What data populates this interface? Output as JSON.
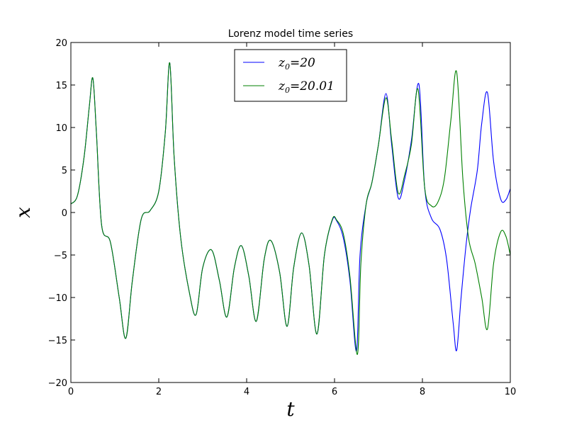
{
  "chart_data": {
    "type": "line",
    "title": "Lorenz model time series",
    "xlabel": "t",
    "ylabel": "x",
    "xlim": [
      0,
      10
    ],
    "ylim": [
      -20,
      20
    ],
    "xticks": [
      0,
      2,
      4,
      6,
      8,
      10
    ],
    "yticks": [
      -20,
      -15,
      -10,
      -5,
      0,
      5,
      10,
      15,
      20
    ],
    "xtick_labels": [
      "0",
      "2",
      "4",
      "6",
      "8",
      "10"
    ],
    "ytick_labels": [
      "−20",
      "−15",
      "−10",
      "−5",
      "0",
      "5",
      "10",
      "15",
      "20"
    ],
    "grid": false,
    "legend_position": "top-center",
    "series": [
      {
        "name": "z₀ = 20",
        "legend_var": "z",
        "legend_sub": "0",
        "legend_val": "=20",
        "color": "#0000ff",
        "x": [
          0,
          0.15,
          0.3,
          0.42,
          0.5,
          0.58,
          0.7,
          0.9,
          1.1,
          1.25,
          1.4,
          1.6,
          1.8,
          2.0,
          2.15,
          2.25,
          2.35,
          2.5,
          2.7,
          2.85,
          3.0,
          3.2,
          3.38,
          3.55,
          3.72,
          3.88,
          4.05,
          4.22,
          4.4,
          4.55,
          4.75,
          4.92,
          5.07,
          5.25,
          5.42,
          5.6,
          5.77,
          5.95,
          6.05,
          6.2,
          6.35,
          6.5,
          6.58,
          6.72,
          6.85,
          7.0,
          7.17,
          7.3,
          7.45,
          7.6,
          7.75,
          7.92,
          8.05,
          8.2,
          8.4,
          8.55,
          8.7,
          8.78,
          8.88,
          9.0,
          9.1,
          9.25,
          9.35,
          9.48,
          9.62,
          9.78,
          9.9,
          10.0
        ],
        "y": [
          1.0,
          2.0,
          6.5,
          12.5,
          15.8,
          9.5,
          -1.5,
          -3.5,
          -10,
          -14.8,
          -8,
          -0.8,
          0.2,
          2.5,
          9.5,
          17.6,
          6.5,
          -3.0,
          -9.5,
          -12.0,
          -6.5,
          -4.4,
          -8.0,
          -12.3,
          -6.5,
          -3.9,
          -7.5,
          -12.8,
          -5.5,
          -3.3,
          -7.0,
          -13.4,
          -6.5,
          -2.4,
          -6.2,
          -14.3,
          -5.0,
          -0.9,
          -1.0,
          -3.0,
          -8.0,
          -16.3,
          -5.0,
          1.0,
          3.5,
          8.0,
          14.0,
          8.0,
          1.7,
          4.0,
          8.5,
          15.1,
          3.0,
          -0.6,
          -2.0,
          -5.5,
          -13.0,
          -16.2,
          -10.0,
          -3.5,
          0.5,
          5.0,
          10.5,
          14.1,
          6.0,
          1.6,
          1.5,
          2.8
        ]
      },
      {
        "name": "z₀ = 20.01",
        "legend_var": "z",
        "legend_sub": "0",
        "legend_val": "=20.01",
        "color": "#008000",
        "x": [
          0,
          0.15,
          0.3,
          0.42,
          0.5,
          0.58,
          0.7,
          0.9,
          1.1,
          1.25,
          1.4,
          1.6,
          1.8,
          2.0,
          2.15,
          2.25,
          2.35,
          2.5,
          2.7,
          2.85,
          3.0,
          3.2,
          3.38,
          3.55,
          3.72,
          3.88,
          4.05,
          4.22,
          4.4,
          4.55,
          4.75,
          4.92,
          5.07,
          5.25,
          5.42,
          5.6,
          5.77,
          5.95,
          6.05,
          6.2,
          6.35,
          6.52,
          6.6,
          6.72,
          6.85,
          7.0,
          7.17,
          7.3,
          7.45,
          7.6,
          7.75,
          7.9,
          8.05,
          8.2,
          8.35,
          8.5,
          8.65,
          8.78,
          8.92,
          9.05,
          9.2,
          9.35,
          9.48,
          9.62,
          9.78,
          9.9,
          10.0
        ],
        "y": [
          1.0,
          2.0,
          6.5,
          12.5,
          15.8,
          9.5,
          -1.5,
          -3.5,
          -10,
          -14.8,
          -8,
          -0.8,
          0.2,
          2.5,
          9.5,
          17.6,
          6.5,
          -3.0,
          -9.5,
          -12.0,
          -6.5,
          -4.4,
          -8.0,
          -12.3,
          -6.5,
          -3.9,
          -7.5,
          -12.8,
          -5.5,
          -3.3,
          -7.0,
          -13.4,
          -6.5,
          -2.4,
          -6.2,
          -14.3,
          -5.0,
          -0.8,
          -0.9,
          -2.5,
          -7.5,
          -16.7,
          -6.0,
          1.0,
          3.5,
          8.0,
          13.5,
          8.5,
          2.3,
          4.5,
          8.0,
          14.5,
          3.0,
          0.8,
          1.2,
          4.0,
          11.0,
          16.5,
          4.0,
          -3.0,
          -6.0,
          -10.0,
          -13.7,
          -6.0,
          -2.3,
          -2.8,
          -5.0
        ]
      }
    ]
  }
}
